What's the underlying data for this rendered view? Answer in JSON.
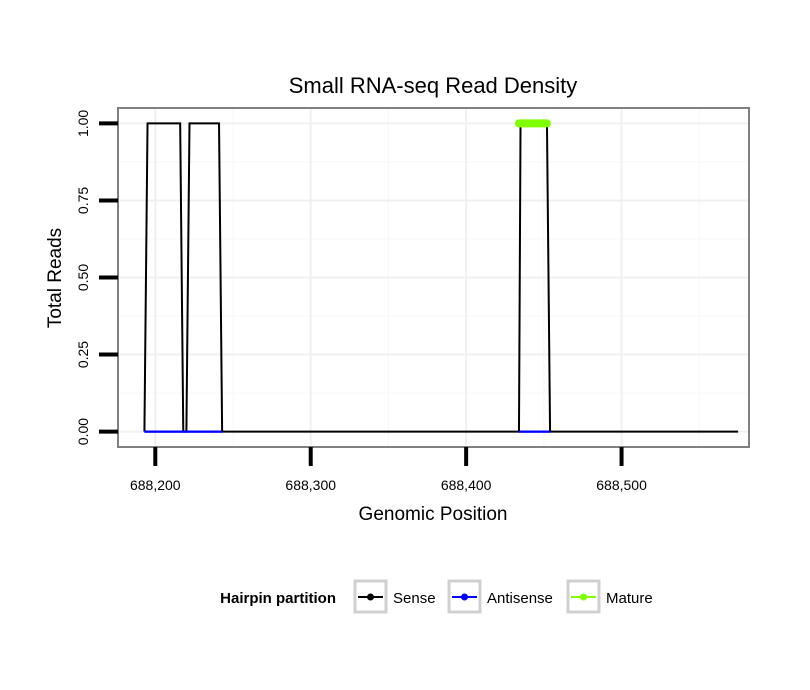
{
  "chart_data": {
    "type": "line",
    "title": "Small RNA-seq Read Density",
    "xlabel": "Genomic Position",
    "ylabel": "Total Reads",
    "xlim": [
      688176,
      688582
    ],
    "ylim": [
      -0.05,
      1.05
    ],
    "x_ticks": [
      688200,
      688300,
      688400,
      688500
    ],
    "x_tick_labels": [
      "688,200",
      "688,300",
      "688,400",
      "688,500"
    ],
    "y_ticks": [
      0,
      0.25,
      0.5,
      0.75,
      1.0
    ],
    "y_tick_labels": [
      "0.00",
      "0.25",
      "0.50",
      "0.75",
      "1.00"
    ],
    "grid": true,
    "series": [
      {
        "name": "Sense",
        "color": "#000000",
        "x": [
          688193,
          688195,
          688216,
          688218,
          688220,
          688222,
          688241,
          688243,
          688434,
          688435,
          688452,
          688454,
          688575
        ],
        "values": [
          0,
          1,
          1,
          0,
          0,
          1,
          1,
          0,
          0,
          1,
          1,
          0,
          0
        ]
      },
      {
        "name": "Antisense",
        "color": "#0000ff",
        "x": [
          688193,
          688243,
          688434,
          688454
        ],
        "values": [
          0,
          0,
          0,
          0
        ],
        "segments": [
          [
            0,
            1
          ],
          [
            2,
            3
          ]
        ]
      },
      {
        "name": "Mature",
        "color": "#7fff00",
        "x": [
          688434,
          688452
        ],
        "values": [
          1,
          1
        ]
      }
    ],
    "legend": {
      "title": "Hairpin partition",
      "position": "bottom",
      "entries": [
        {
          "label": "Sense",
          "color": "#000000"
        },
        {
          "label": "Antisense",
          "color": "#0000ff"
        },
        {
          "label": "Mature",
          "color": "#7fff00"
        }
      ]
    }
  }
}
